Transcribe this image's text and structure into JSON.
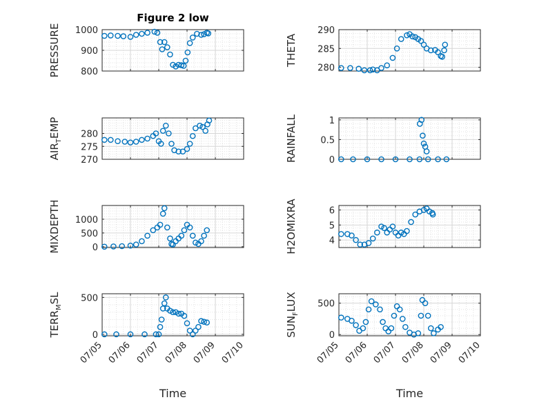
{
  "chart_data": [
    {
      "type": "scatter",
      "title": "Figure 2 low",
      "ylabel": "PRESSURE",
      "xlim": [
        0,
        5
      ],
      "ylim": [
        800,
        1000
      ],
      "yticks": [
        800,
        900,
        1000
      ],
      "grid": "on-minor-dotted",
      "color": "#0072BD",
      "points": [
        [
          0.08,
          970
        ],
        [
          0.3,
          972
        ],
        [
          0.55,
          970
        ],
        [
          0.75,
          968
        ],
        [
          1.0,
          965
        ],
        [
          1.2,
          975
        ],
        [
          1.4,
          980
        ],
        [
          1.6,
          985
        ],
        [
          1.85,
          990
        ],
        [
          1.95,
          985
        ],
        [
          2.05,
          940
        ],
        [
          2.12,
          905
        ],
        [
          2.2,
          940
        ],
        [
          2.3,
          915
        ],
        [
          2.4,
          880
        ],
        [
          2.5,
          830
        ],
        [
          2.6,
          822
        ],
        [
          2.7,
          830
        ],
        [
          2.8,
          828
        ],
        [
          2.88,
          825
        ],
        [
          2.95,
          850
        ],
        [
          3.02,
          890
        ],
        [
          3.1,
          935
        ],
        [
          3.2,
          962
        ],
        [
          3.35,
          980
        ],
        [
          3.5,
          975
        ],
        [
          3.6,
          978
        ],
        [
          3.7,
          985
        ],
        [
          3.75,
          982
        ]
      ],
      "xlabel": ""
    },
    {
      "type": "scatter",
      "ylabel": "THETA",
      "xlim": [
        0,
        5
      ],
      "ylim": [
        279,
        290
      ],
      "yticks": [
        280,
        285,
        290
      ],
      "grid": "on-minor-dotted",
      "color": "#0072BD",
      "points": [
        [
          0.08,
          279.8
        ],
        [
          0.4,
          279.8
        ],
        [
          0.7,
          279.6
        ],
        [
          0.9,
          279.2
        ],
        [
          1.1,
          279.2
        ],
        [
          1.2,
          279.4
        ],
        [
          1.35,
          279.2
        ],
        [
          1.5,
          279.8
        ],
        [
          1.7,
          280.5
        ],
        [
          1.9,
          282.5
        ],
        [
          2.05,
          285
        ],
        [
          2.2,
          287.5
        ],
        [
          2.4,
          288.5
        ],
        [
          2.5,
          288.8
        ],
        [
          2.6,
          288.2
        ],
        [
          2.7,
          288
        ],
        [
          2.8,
          287.5
        ],
        [
          2.9,
          287
        ],
        [
          3.0,
          286
        ],
        [
          3.1,
          285
        ],
        [
          3.25,
          284.5
        ],
        [
          3.4,
          284.6
        ],
        [
          3.5,
          284
        ],
        [
          3.6,
          283
        ],
        [
          3.65,
          282.8
        ],
        [
          3.72,
          284.5
        ],
        [
          3.75,
          286
        ]
      ],
      "xlabel": ""
    },
    {
      "type": "scatter",
      "ylabel": "AIR_TEMP",
      "ylabel_main_a": "AIR",
      "ylabel_sub": "T",
      "ylabel_main_b": "EMP",
      "xlim": [
        0,
        5
      ],
      "ylim": [
        270,
        286
      ],
      "yticks": [
        270,
        275,
        280
      ],
      "grid": "on-minor-dotted",
      "color": "#0072BD",
      "points": [
        [
          0.08,
          277.5
        ],
        [
          0.3,
          277.5
        ],
        [
          0.55,
          277
        ],
        [
          0.8,
          276.8
        ],
        [
          1.0,
          276.5
        ],
        [
          1.2,
          276.8
        ],
        [
          1.4,
          277.5
        ],
        [
          1.6,
          278
        ],
        [
          1.8,
          279
        ],
        [
          1.9,
          280
        ],
        [
          2.0,
          277
        ],
        [
          2.08,
          276
        ],
        [
          2.15,
          281
        ],
        [
          2.25,
          283
        ],
        [
          2.35,
          280
        ],
        [
          2.45,
          276
        ],
        [
          2.55,
          273.5
        ],
        [
          2.7,
          273
        ],
        [
          2.85,
          273
        ],
        [
          3.0,
          274
        ],
        [
          3.1,
          276
        ],
        [
          3.2,
          279
        ],
        [
          3.3,
          282
        ],
        [
          3.45,
          283
        ],
        [
          3.55,
          282.5
        ],
        [
          3.65,
          281
        ],
        [
          3.72,
          283.5
        ],
        [
          3.78,
          285
        ]
      ],
      "xlabel": ""
    },
    {
      "type": "scatter",
      "ylabel": "RAINFALL",
      "xlim": [
        0,
        5
      ],
      "ylim": [
        0,
        1.05
      ],
      "yticks": [
        0,
        0.5,
        1
      ],
      "ytick_labels": [
        "0",
        "0.5",
        "1"
      ],
      "grid": "on-minor-dotted",
      "color": "#0072BD",
      "points": [
        [
          0.08,
          0
        ],
        [
          0.5,
          0
        ],
        [
          1.0,
          0
        ],
        [
          1.5,
          0
        ],
        [
          2.0,
          0
        ],
        [
          2.5,
          0
        ],
        [
          2.85,
          0
        ],
        [
          2.86,
          0.9
        ],
        [
          2.92,
          1.0
        ],
        [
          2.96,
          0.6
        ],
        [
          3.0,
          0.4
        ],
        [
          3.05,
          0.32
        ],
        [
          3.1,
          0.2
        ],
        [
          3.15,
          0
        ],
        [
          3.5,
          0
        ],
        [
          3.8,
          0
        ]
      ],
      "xlabel": ""
    },
    {
      "type": "scatter",
      "ylabel": "MIXDEPTH",
      "xlim": [
        0,
        5
      ],
      "ylim": [
        -30,
        1500
      ],
      "yticks": [
        0,
        500,
        1000
      ],
      "grid": "on-minor-dotted",
      "color": "#0072BD",
      "points": [
        [
          0.08,
          0
        ],
        [
          0.4,
          10
        ],
        [
          0.7,
          20
        ],
        [
          1.0,
          40
        ],
        [
          1.2,
          80
        ],
        [
          1.4,
          200
        ],
        [
          1.6,
          400
        ],
        [
          1.8,
          600
        ],
        [
          1.95,
          700
        ],
        [
          2.05,
          800
        ],
        [
          2.15,
          1200
        ],
        [
          2.2,
          1400
        ],
        [
          2.3,
          700
        ],
        [
          2.4,
          300
        ],
        [
          2.45,
          100
        ],
        [
          2.5,
          80
        ],
        [
          2.6,
          200
        ],
        [
          2.7,
          300
        ],
        [
          2.8,
          400
        ],
        [
          2.9,
          600
        ],
        [
          3.0,
          800
        ],
        [
          3.1,
          700
        ],
        [
          3.2,
          400
        ],
        [
          3.3,
          150
        ],
        [
          3.4,
          100
        ],
        [
          3.5,
          200
        ],
        [
          3.6,
          400
        ],
        [
          3.7,
          600
        ]
      ],
      "xlabel": ""
    },
    {
      "type": "scatter",
      "ylabel": "H2OMIXRA",
      "xlim": [
        0,
        5
      ],
      "ylim": [
        3.5,
        6.3
      ],
      "yticks": [
        4,
        5,
        6
      ],
      "grid": "on-minor-dotted",
      "color": "#0072BD",
      "points": [
        [
          0.08,
          4.4
        ],
        [
          0.3,
          4.4
        ],
        [
          0.45,
          4.3
        ],
        [
          0.6,
          4
        ],
        [
          0.75,
          3.7
        ],
        [
          0.9,
          3.7
        ],
        [
          1.05,
          3.8
        ],
        [
          1.2,
          4.1
        ],
        [
          1.35,
          4.5
        ],
        [
          1.5,
          4.9
        ],
        [
          1.6,
          4.8
        ],
        [
          1.7,
          4.5
        ],
        [
          1.8,
          4.7
        ],
        [
          1.9,
          4.9
        ],
        [
          2.0,
          4.5
        ],
        [
          2.1,
          4.3
        ],
        [
          2.2,
          4.5
        ],
        [
          2.3,
          4.4
        ],
        [
          2.4,
          4.6
        ],
        [
          2.55,
          5.2
        ],
        [
          2.7,
          5.7
        ],
        [
          2.85,
          5.9
        ],
        [
          3.0,
          6.0
        ],
        [
          3.1,
          6.1
        ],
        [
          3.2,
          5.9
        ],
        [
          3.3,
          5.8
        ],
        [
          3.32,
          5.7
        ]
      ],
      "xlabel": ""
    },
    {
      "type": "scatter",
      "ylabel": "TERR_MSL",
      "ylabel_main_a": "TERR",
      "ylabel_sub": "M",
      "ylabel_main_b": "SL",
      "xlim": [
        0,
        5
      ],
      "ylim": [
        -20,
        550
      ],
      "yticks": [
        0,
        500
      ],
      "grid": "on-minor-dotted",
      "color": "#0072BD",
      "points": [
        [
          0.08,
          0
        ],
        [
          0.5,
          0
        ],
        [
          1.0,
          0
        ],
        [
          1.5,
          0
        ],
        [
          1.9,
          0
        ],
        [
          2.0,
          0
        ],
        [
          2.05,
          100
        ],
        [
          2.1,
          200
        ],
        [
          2.15,
          350
        ],
        [
          2.2,
          420
        ],
        [
          2.25,
          500
        ],
        [
          2.3,
          350
        ],
        [
          2.4,
          320
        ],
        [
          2.5,
          300
        ],
        [
          2.6,
          300
        ],
        [
          2.7,
          280
        ],
        [
          2.8,
          280
        ],
        [
          2.9,
          250
        ],
        [
          3.0,
          150
        ],
        [
          3.1,
          50
        ],
        [
          3.2,
          0
        ],
        [
          3.3,
          50
        ],
        [
          3.4,
          100
        ],
        [
          3.5,
          180
        ],
        [
          3.6,
          170
        ],
        [
          3.7,
          160
        ]
      ],
      "xlabel": "Time"
    },
    {
      "type": "scatter",
      "ylabel": "SUN_FLUX",
      "ylabel_main_a": "SUN",
      "ylabel_sub": "F",
      "ylabel_main_b": "LUX",
      "xlim": [
        0,
        5
      ],
      "ylim": [
        -20,
        650
      ],
      "yticks": [
        0,
        500
      ],
      "grid": "on-minor-dotted",
      "color": "#0072BD",
      "points": [
        [
          0.08,
          270
        ],
        [
          0.3,
          250
        ],
        [
          0.45,
          220
        ],
        [
          0.6,
          150
        ],
        [
          0.72,
          60
        ],
        [
          0.85,
          100
        ],
        [
          0.95,
          200
        ],
        [
          1.05,
          400
        ],
        [
          1.15,
          530
        ],
        [
          1.3,
          480
        ],
        [
          1.45,
          400
        ],
        [
          1.55,
          200
        ],
        [
          1.65,
          100
        ],
        [
          1.75,
          50
        ],
        [
          1.85,
          100
        ],
        [
          1.95,
          300
        ],
        [
          2.05,
          450
        ],
        [
          2.15,
          400
        ],
        [
          2.25,
          250
        ],
        [
          2.35,
          120
        ],
        [
          2.5,
          30
        ],
        [
          2.65,
          0
        ],
        [
          2.8,
          20
        ],
        [
          2.9,
          300
        ],
        [
          2.95,
          550
        ],
        [
          3.05,
          500
        ],
        [
          3.15,
          300
        ],
        [
          3.25,
          100
        ],
        [
          3.35,
          20
        ],
        [
          3.5,
          80
        ],
        [
          3.6,
          120
        ]
      ],
      "xlabel": "Time"
    }
  ],
  "x_tick_labels": [
    "07/05",
    "07/06",
    "07/07",
    "07/08",
    "07/09",
    "07/10"
  ]
}
